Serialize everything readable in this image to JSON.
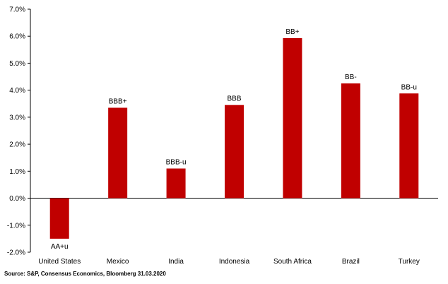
{
  "chart_data": {
    "type": "bar",
    "categories": [
      "United States",
      "Mexico",
      "India",
      "Indonesia",
      "South Africa",
      "Brazil",
      "Turkey"
    ],
    "values": [
      -1.5,
      3.35,
      1.1,
      3.45,
      5.93,
      4.25,
      3.88
    ],
    "data_labels": [
      "AA+u",
      "BBB+",
      "BBB-u",
      "BBB",
      "BB+",
      "BB-",
      "BB-u"
    ],
    "y_ticks": [
      "-2.0%",
      "-1.0%",
      "0.0%",
      "1.0%",
      "2.0%",
      "3.0%",
      "4.0%",
      "5.0%",
      "6.0%",
      "7.0%"
    ],
    "ylim": [
      -2,
      7
    ],
    "y_unit": "%",
    "bar_color": "#c00000",
    "grid": false,
    "legend": "none",
    "title": "",
    "xlabel": "",
    "ylabel": ""
  },
  "source": "Source: S&P, Consensus Economics, Bloomberg 31.03.2020"
}
